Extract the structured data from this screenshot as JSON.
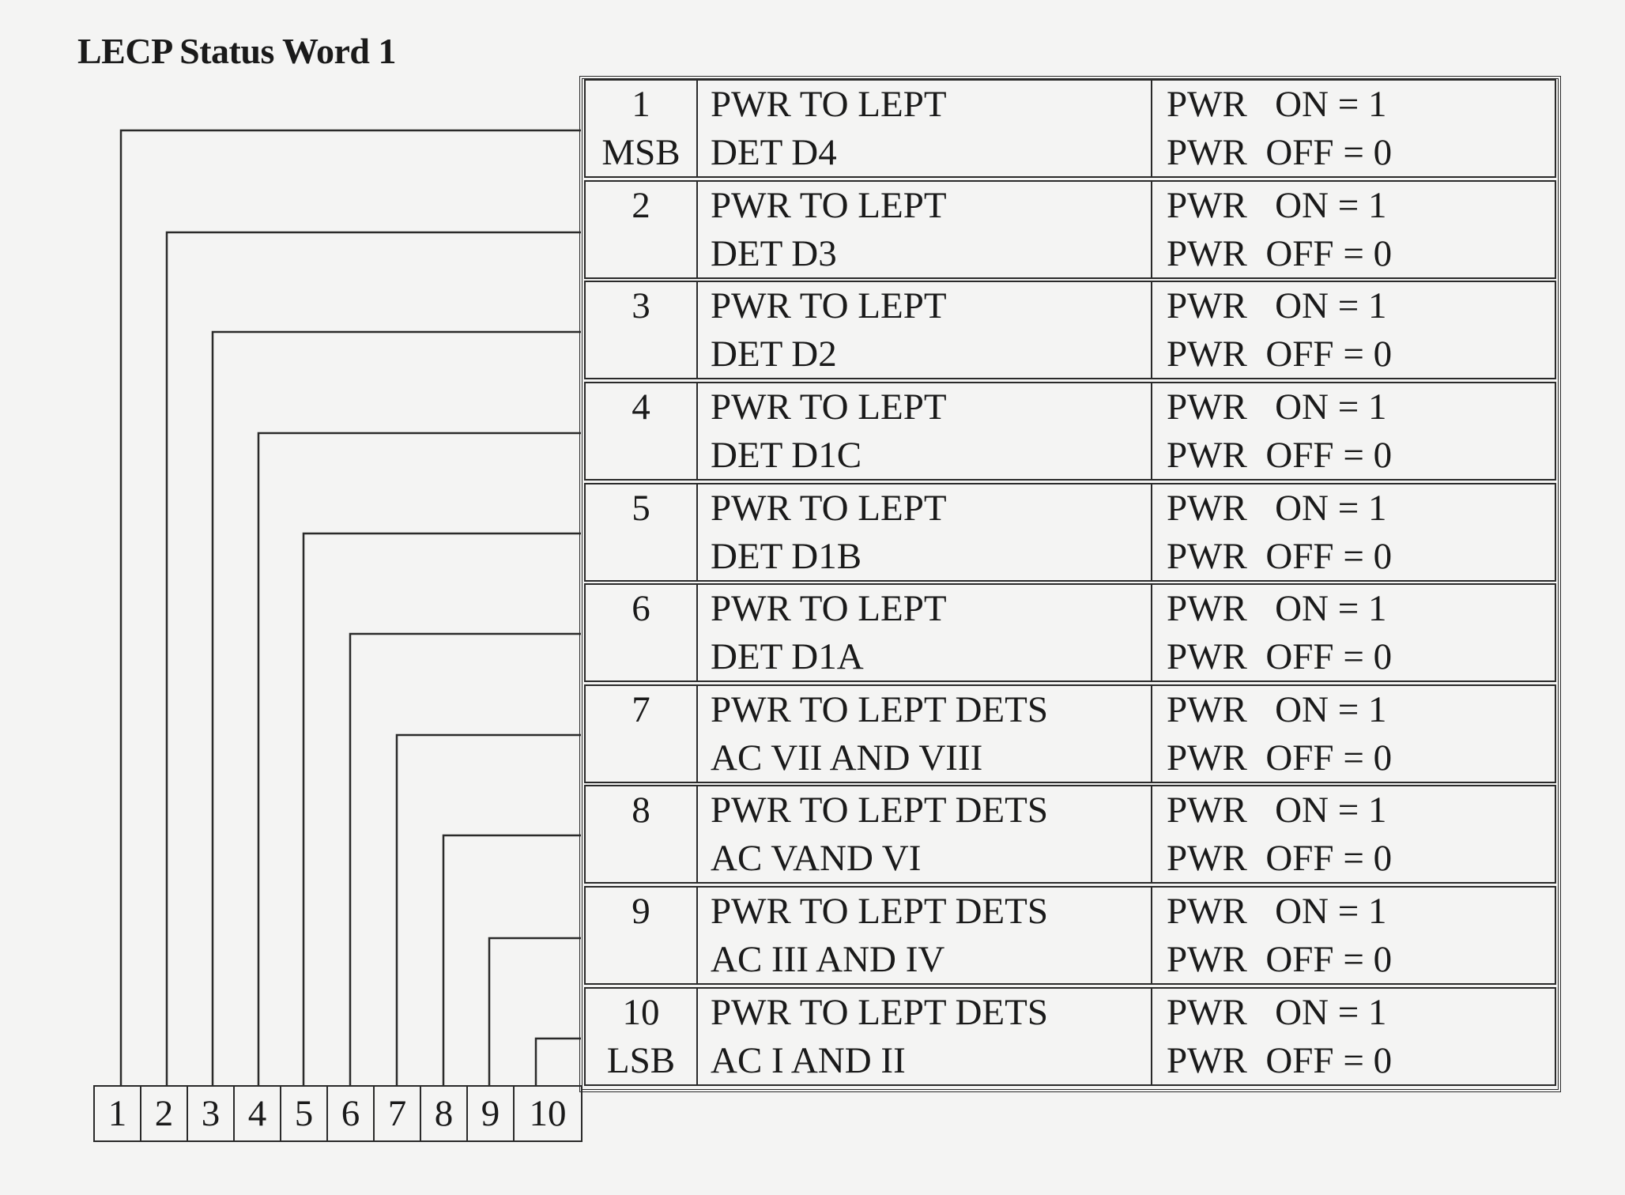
{
  "title": "LECP Status Word 1",
  "rows": [
    {
      "bit": "1",
      "tag": "MSB",
      "desc1": "PWR TO LEPT",
      "desc2": "DET D4",
      "on": "PWR   ON = 1",
      "off": "PWR  OFF = 0"
    },
    {
      "bit": "2",
      "tag": "",
      "desc1": "PWR TO LEPT",
      "desc2": "DET D3",
      "on": "PWR   ON = 1",
      "off": "PWR  OFF = 0"
    },
    {
      "bit": "3",
      "tag": "",
      "desc1": "PWR TO LEPT",
      "desc2": "DET D2",
      "on": "PWR   ON = 1",
      "off": "PWR  OFF = 0"
    },
    {
      "bit": "4",
      "tag": "",
      "desc1": "PWR TO LEPT",
      "desc2": "DET D1C",
      "on": "PWR   ON = 1",
      "off": "PWR  OFF = 0"
    },
    {
      "bit": "5",
      "tag": "",
      "desc1": "PWR TO LEPT",
      "desc2": "DET D1B",
      "on": "PWR   ON = 1",
      "off": "PWR  OFF = 0"
    },
    {
      "bit": "6",
      "tag": "",
      "desc1": "PWR TO LEPT",
      "desc2": "DET D1A",
      "on": "PWR   ON = 1",
      "off": "PWR  OFF = 0"
    },
    {
      "bit": "7",
      "tag": "",
      "desc1": "PWR TO LEPT DETS",
      "desc2": "AC VII AND VIII",
      "on": "PWR   ON = 1",
      "off": "PWR  OFF = 0"
    },
    {
      "bit": "8",
      "tag": "",
      "desc1": "PWR TO LEPT DETS",
      "desc2": "AC VAND VI",
      "on": "PWR   ON = 1",
      "off": "PWR  OFF = 0"
    },
    {
      "bit": "9",
      "tag": "",
      "desc1": "PWR TO LEPT DETS",
      "desc2": "AC III AND IV",
      "on": "PWR   ON = 1",
      "off": "PWR  OFF = 0"
    },
    {
      "bit": "10",
      "tag": "LSB",
      "desc1": "PWR TO LEPT DETS",
      "desc2": "AC I AND II",
      "on": "PWR   ON = 1",
      "off": "PWR  OFF = 0"
    }
  ],
  "bit_boxes": [
    "1",
    "2",
    "3",
    "4",
    "5",
    "6",
    "7",
    "8",
    "9",
    "10"
  ]
}
